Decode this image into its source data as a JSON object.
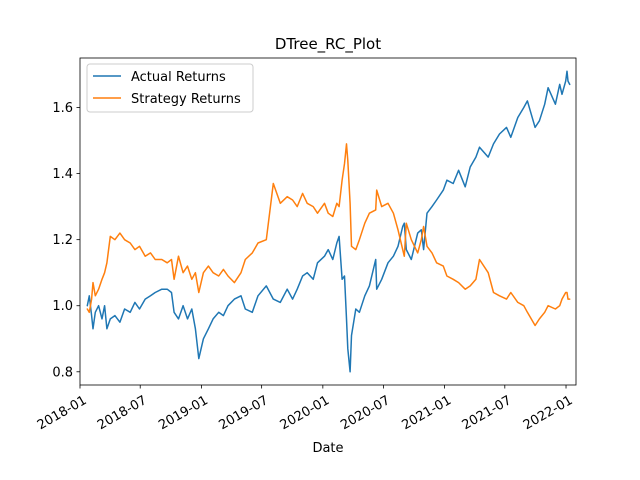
{
  "chart_data": {
    "type": "line",
    "title": "DTree_RC_Plot",
    "xlabel": "Date",
    "ylabel": "",
    "x_type": "date",
    "xlim": [
      "2018-01-01",
      "2022-01-31"
    ],
    "ylim": [
      0.76,
      1.75
    ],
    "x_ticks": [
      "2018-01",
      "2018-07",
      "2019-01",
      "2019-07",
      "2020-01",
      "2020-07",
      "2021-01",
      "2021-07",
      "2022-01"
    ],
    "y_ticks": [
      "0.8",
      "1.0",
      "1.2",
      "1.4",
      "1.6"
    ],
    "legend": "upper left",
    "grid": false,
    "series": [
      {
        "name": "Actual Returns",
        "color": "#1f77b4",
        "points": [
          [
            "2018-01-23",
            1.0
          ],
          [
            "2018-01-29",
            1.03
          ],
          [
            "2018-02-05",
            0.97
          ],
          [
            "2018-02-09",
            0.93
          ],
          [
            "2018-02-16",
            0.98
          ],
          [
            "2018-02-26",
            1.0
          ],
          [
            "2018-03-08",
            0.96
          ],
          [
            "2018-03-16",
            1.0
          ],
          [
            "2018-03-23",
            0.93
          ],
          [
            "2018-04-02",
            0.96
          ],
          [
            "2018-04-16",
            0.97
          ],
          [
            "2018-05-01",
            0.95
          ],
          [
            "2018-05-15",
            0.99
          ],
          [
            "2018-06-01",
            0.98
          ],
          [
            "2018-06-15",
            1.01
          ],
          [
            "2018-06-29",
            0.99
          ],
          [
            "2018-07-16",
            1.02
          ],
          [
            "2018-08-01",
            1.03
          ],
          [
            "2018-08-15",
            1.04
          ],
          [
            "2018-09-04",
            1.05
          ],
          [
            "2018-09-20",
            1.05
          ],
          [
            "2018-10-03",
            1.04
          ],
          [
            "2018-10-11",
            0.98
          ],
          [
            "2018-10-24",
            0.96
          ],
          [
            "2018-11-07",
            1.0
          ],
          [
            "2018-11-20",
            0.96
          ],
          [
            "2018-12-03",
            0.99
          ],
          [
            "2018-12-14",
            0.93
          ],
          [
            "2018-12-24",
            0.84
          ],
          [
            "2019-01-07",
            0.9
          ],
          [
            "2019-01-22",
            0.93
          ],
          [
            "2019-02-05",
            0.96
          ],
          [
            "2019-02-22",
            0.98
          ],
          [
            "2019-03-08",
            0.97
          ],
          [
            "2019-03-22",
            1.0
          ],
          [
            "2019-04-10",
            1.02
          ],
          [
            "2019-04-30",
            1.03
          ],
          [
            "2019-05-13",
            0.99
          ],
          [
            "2019-06-03",
            0.98
          ],
          [
            "2019-06-20",
            1.03
          ],
          [
            "2019-07-15",
            1.06
          ],
          [
            "2019-08-05",
            1.02
          ],
          [
            "2019-08-26",
            1.01
          ],
          [
            "2019-09-16",
            1.05
          ],
          [
            "2019-10-02",
            1.02
          ],
          [
            "2019-10-16",
            1.05
          ],
          [
            "2019-11-01",
            1.09
          ],
          [
            "2019-11-15",
            1.1
          ],
          [
            "2019-12-03",
            1.08
          ],
          [
            "2019-12-16",
            1.13
          ],
          [
            "2020-01-06",
            1.15
          ],
          [
            "2020-01-17",
            1.17
          ],
          [
            "2020-01-31",
            1.14
          ],
          [
            "2020-02-12",
            1.19
          ],
          [
            "2020-02-19",
            1.21
          ],
          [
            "2020-02-28",
            1.08
          ],
          [
            "2020-03-06",
            1.09
          ],
          [
            "2020-03-12",
            0.96
          ],
          [
            "2020-03-16",
            0.87
          ],
          [
            "2020-03-23",
            0.8
          ],
          [
            "2020-03-27",
            0.91
          ],
          [
            "2020-04-09",
            0.99
          ],
          [
            "2020-04-20",
            0.98
          ],
          [
            "2020-05-06",
            1.03
          ],
          [
            "2020-05-20",
            1.06
          ],
          [
            "2020-06-08",
            1.14
          ],
          [
            "2020-06-11",
            1.05
          ],
          [
            "2020-06-26",
            1.08
          ],
          [
            "2020-07-15",
            1.13
          ],
          [
            "2020-07-31",
            1.15
          ],
          [
            "2020-08-14",
            1.18
          ],
          [
            "2020-08-28",
            1.24
          ],
          [
            "2020-09-02",
            1.25
          ],
          [
            "2020-09-08",
            1.17
          ],
          [
            "2020-09-23",
            1.14
          ],
          [
            "2020-10-12",
            1.22
          ],
          [
            "2020-10-23",
            1.23
          ],
          [
            "2020-10-30",
            1.17
          ],
          [
            "2020-11-09",
            1.28
          ],
          [
            "2020-11-24",
            1.3
          ],
          [
            "2020-12-08",
            1.32
          ],
          [
            "2020-12-28",
            1.35
          ],
          [
            "2021-01-08",
            1.38
          ],
          [
            "2021-01-27",
            1.37
          ],
          [
            "2021-02-12",
            1.41
          ],
          [
            "2021-03-04",
            1.36
          ],
          [
            "2021-03-19",
            1.42
          ],
          [
            "2021-04-05",
            1.45
          ],
          [
            "2021-04-16",
            1.48
          ],
          [
            "2021-05-12",
            1.45
          ],
          [
            "2021-05-28",
            1.49
          ],
          [
            "2021-06-15",
            1.52
          ],
          [
            "2021-07-06",
            1.54
          ],
          [
            "2021-07-19",
            1.51
          ],
          [
            "2021-08-09",
            1.57
          ],
          [
            "2021-08-27",
            1.6
          ],
          [
            "2021-09-07",
            1.62
          ],
          [
            "2021-09-30",
            1.54
          ],
          [
            "2021-10-13",
            1.56
          ],
          [
            "2021-10-29",
            1.61
          ],
          [
            "2021-11-08",
            1.66
          ],
          [
            "2021-11-30",
            1.61
          ],
          [
            "2021-12-13",
            1.67
          ],
          [
            "2021-12-20",
            1.64
          ],
          [
            "2021-12-31",
            1.68
          ],
          [
            "2022-01-04",
            1.71
          ],
          [
            "2022-01-07",
            1.68
          ],
          [
            "2022-01-12",
            1.67
          ]
        ]
      },
      {
        "name": "Strategy Returns",
        "color": "#ff7f0e",
        "points": [
          [
            "2018-01-23",
            0.99
          ],
          [
            "2018-01-29",
            0.98
          ],
          [
            "2018-02-05",
            1.02
          ],
          [
            "2018-02-09",
            1.07
          ],
          [
            "2018-02-16",
            1.03
          ],
          [
            "2018-02-26",
            1.05
          ],
          [
            "2018-03-08",
            1.08
          ],
          [
            "2018-03-16",
            1.1
          ],
          [
            "2018-03-23",
            1.13
          ],
          [
            "2018-04-02",
            1.21
          ],
          [
            "2018-04-16",
            1.2
          ],
          [
            "2018-05-01",
            1.22
          ],
          [
            "2018-05-15",
            1.2
          ],
          [
            "2018-06-01",
            1.19
          ],
          [
            "2018-06-15",
            1.17
          ],
          [
            "2018-06-29",
            1.18
          ],
          [
            "2018-07-16",
            1.15
          ],
          [
            "2018-08-01",
            1.16
          ],
          [
            "2018-08-15",
            1.14
          ],
          [
            "2018-09-04",
            1.14
          ],
          [
            "2018-09-20",
            1.13
          ],
          [
            "2018-10-03",
            1.14
          ],
          [
            "2018-10-11",
            1.08
          ],
          [
            "2018-10-24",
            1.15
          ],
          [
            "2018-11-07",
            1.1
          ],
          [
            "2018-11-20",
            1.12
          ],
          [
            "2018-12-03",
            1.08
          ],
          [
            "2018-12-14",
            1.1
          ],
          [
            "2018-12-24",
            1.04
          ],
          [
            "2019-01-07",
            1.1
          ],
          [
            "2019-01-22",
            1.12
          ],
          [
            "2019-02-05",
            1.1
          ],
          [
            "2019-02-22",
            1.09
          ],
          [
            "2019-03-08",
            1.11
          ],
          [
            "2019-03-22",
            1.09
          ],
          [
            "2019-04-10",
            1.07
          ],
          [
            "2019-04-30",
            1.1
          ],
          [
            "2019-05-13",
            1.14
          ],
          [
            "2019-06-03",
            1.16
          ],
          [
            "2019-06-20",
            1.19
          ],
          [
            "2019-07-15",
            1.2
          ],
          [
            "2019-08-05",
            1.37
          ],
          [
            "2019-08-26",
            1.31
          ],
          [
            "2019-09-16",
            1.33
          ],
          [
            "2019-10-02",
            1.32
          ],
          [
            "2019-10-16",
            1.3
          ],
          [
            "2019-11-01",
            1.34
          ],
          [
            "2019-11-15",
            1.31
          ],
          [
            "2019-12-03",
            1.3
          ],
          [
            "2019-12-16",
            1.28
          ],
          [
            "2020-01-06",
            1.31
          ],
          [
            "2020-01-17",
            1.28
          ],
          [
            "2020-01-31",
            1.27
          ],
          [
            "2020-02-12",
            1.31
          ],
          [
            "2020-02-19",
            1.3
          ],
          [
            "2020-02-28",
            1.38
          ],
          [
            "2020-03-06",
            1.43
          ],
          [
            "2020-03-12",
            1.49
          ],
          [
            "2020-03-16",
            1.44
          ],
          [
            "2020-03-23",
            1.31
          ],
          [
            "2020-03-27",
            1.18
          ],
          [
            "2020-04-09",
            1.17
          ],
          [
            "2020-04-20",
            1.2
          ],
          [
            "2020-05-06",
            1.25
          ],
          [
            "2020-05-20",
            1.28
          ],
          [
            "2020-06-08",
            1.29
          ],
          [
            "2020-06-11",
            1.35
          ],
          [
            "2020-06-26",
            1.3
          ],
          [
            "2020-07-15",
            1.31
          ],
          [
            "2020-07-31",
            1.28
          ],
          [
            "2020-08-14",
            1.23
          ],
          [
            "2020-08-28",
            1.17
          ],
          [
            "2020-09-02",
            1.15
          ],
          [
            "2020-09-08",
            1.25
          ],
          [
            "2020-09-23",
            1.2
          ],
          [
            "2020-10-12",
            1.16
          ],
          [
            "2020-10-23",
            1.2
          ],
          [
            "2020-10-30",
            1.24
          ],
          [
            "2020-11-09",
            1.18
          ],
          [
            "2020-11-24",
            1.16
          ],
          [
            "2020-12-08",
            1.13
          ],
          [
            "2020-12-28",
            1.12
          ],
          [
            "2021-01-08",
            1.09
          ],
          [
            "2021-01-27",
            1.08
          ],
          [
            "2021-02-12",
            1.07
          ],
          [
            "2021-03-04",
            1.05
          ],
          [
            "2021-03-19",
            1.06
          ],
          [
            "2021-04-05",
            1.08
          ],
          [
            "2021-04-16",
            1.14
          ],
          [
            "2021-05-12",
            1.1
          ],
          [
            "2021-05-28",
            1.04
          ],
          [
            "2021-06-15",
            1.03
          ],
          [
            "2021-07-06",
            1.02
          ],
          [
            "2021-07-19",
            1.04
          ],
          [
            "2021-08-09",
            1.01
          ],
          [
            "2021-08-27",
            1.0
          ],
          [
            "2021-09-07",
            0.98
          ],
          [
            "2021-09-30",
            0.94
          ],
          [
            "2021-10-13",
            0.96
          ],
          [
            "2021-10-29",
            0.98
          ],
          [
            "2021-11-08",
            1.0
          ],
          [
            "2021-11-30",
            0.99
          ],
          [
            "2021-12-13",
            1.0
          ],
          [
            "2021-12-20",
            1.02
          ],
          [
            "2021-12-31",
            1.04
          ],
          [
            "2022-01-04",
            1.04
          ],
          [
            "2022-01-07",
            1.02
          ],
          [
            "2022-01-12",
            1.02
          ]
        ]
      }
    ]
  }
}
